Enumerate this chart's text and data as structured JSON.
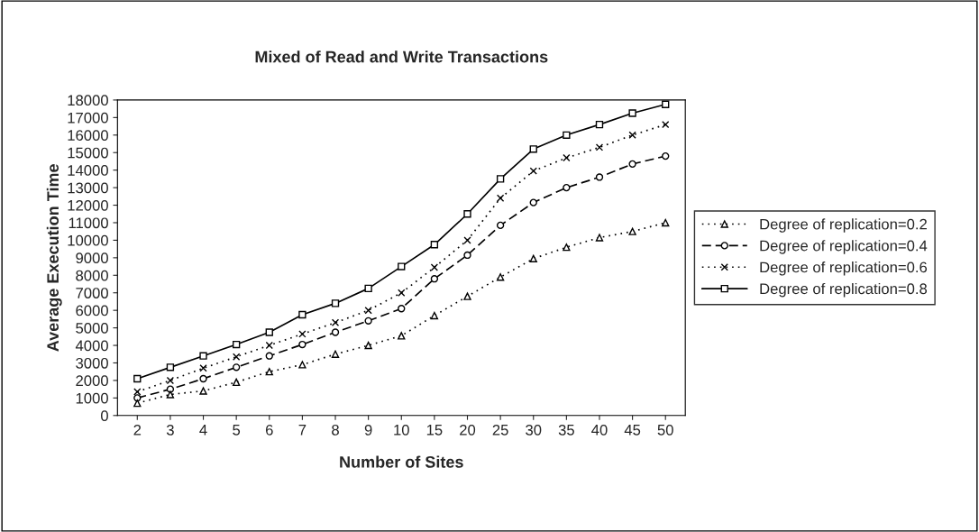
{
  "chart_data": {
    "type": "line",
    "title": "Mixed of Read and Write Transactions",
    "xlabel": "Number of Sites",
    "ylabel": "Average Execution Time",
    "categories": [
      "2",
      "3",
      "4",
      "5",
      "6",
      "7",
      "8",
      "9",
      "10",
      "15",
      "20",
      "25",
      "30",
      "35",
      "40",
      "45",
      "50"
    ],
    "series": [
      {
        "name": "Degree of replication=0.2",
        "color": "#000000",
        "marker": "triangle",
        "line_style": "dotted",
        "values": [
          700,
          1200,
          1400,
          1900,
          2500,
          2900,
          3500,
          4000,
          4550,
          5700,
          6800,
          7900,
          8950,
          9600,
          10150,
          10500,
          11000
        ]
      },
      {
        "name": "Degree of replication=0.4",
        "color": "#000000",
        "marker": "circle",
        "line_style": "dashed",
        "values": [
          1000,
          1500,
          2100,
          2750,
          3400,
          4050,
          4750,
          5400,
          6100,
          7800,
          9150,
          10850,
          12150,
          13000,
          13600,
          14350,
          14800
        ]
      },
      {
        "name": "Degree of replication=0.6",
        "color": "#000000",
        "marker": "cross",
        "line_style": "dotted",
        "values": [
          1350,
          2000,
          2700,
          3350,
          4000,
          4650,
          5300,
          6000,
          7000,
          8450,
          10000,
          12400,
          13950,
          14700,
          15300,
          16000,
          16600
        ]
      },
      {
        "name": "Degree of replication=0.8",
        "color": "#000000",
        "marker": "square",
        "line_style": "solid",
        "values": [
          2100,
          2750,
          3400,
          4050,
          4750,
          5750,
          6400,
          7250,
          8500,
          9750,
          11500,
          13500,
          15200,
          16000,
          16600,
          17250,
          17750
        ]
      }
    ],
    "ylim": [
      0,
      18000
    ],
    "yticks": [
      0,
      1000,
      2000,
      3000,
      4000,
      5000,
      6000,
      7000,
      8000,
      9000,
      10000,
      11000,
      12000,
      13000,
      14000,
      15000,
      16000,
      17000,
      18000
    ],
    "grid": false,
    "legend": "right"
  }
}
